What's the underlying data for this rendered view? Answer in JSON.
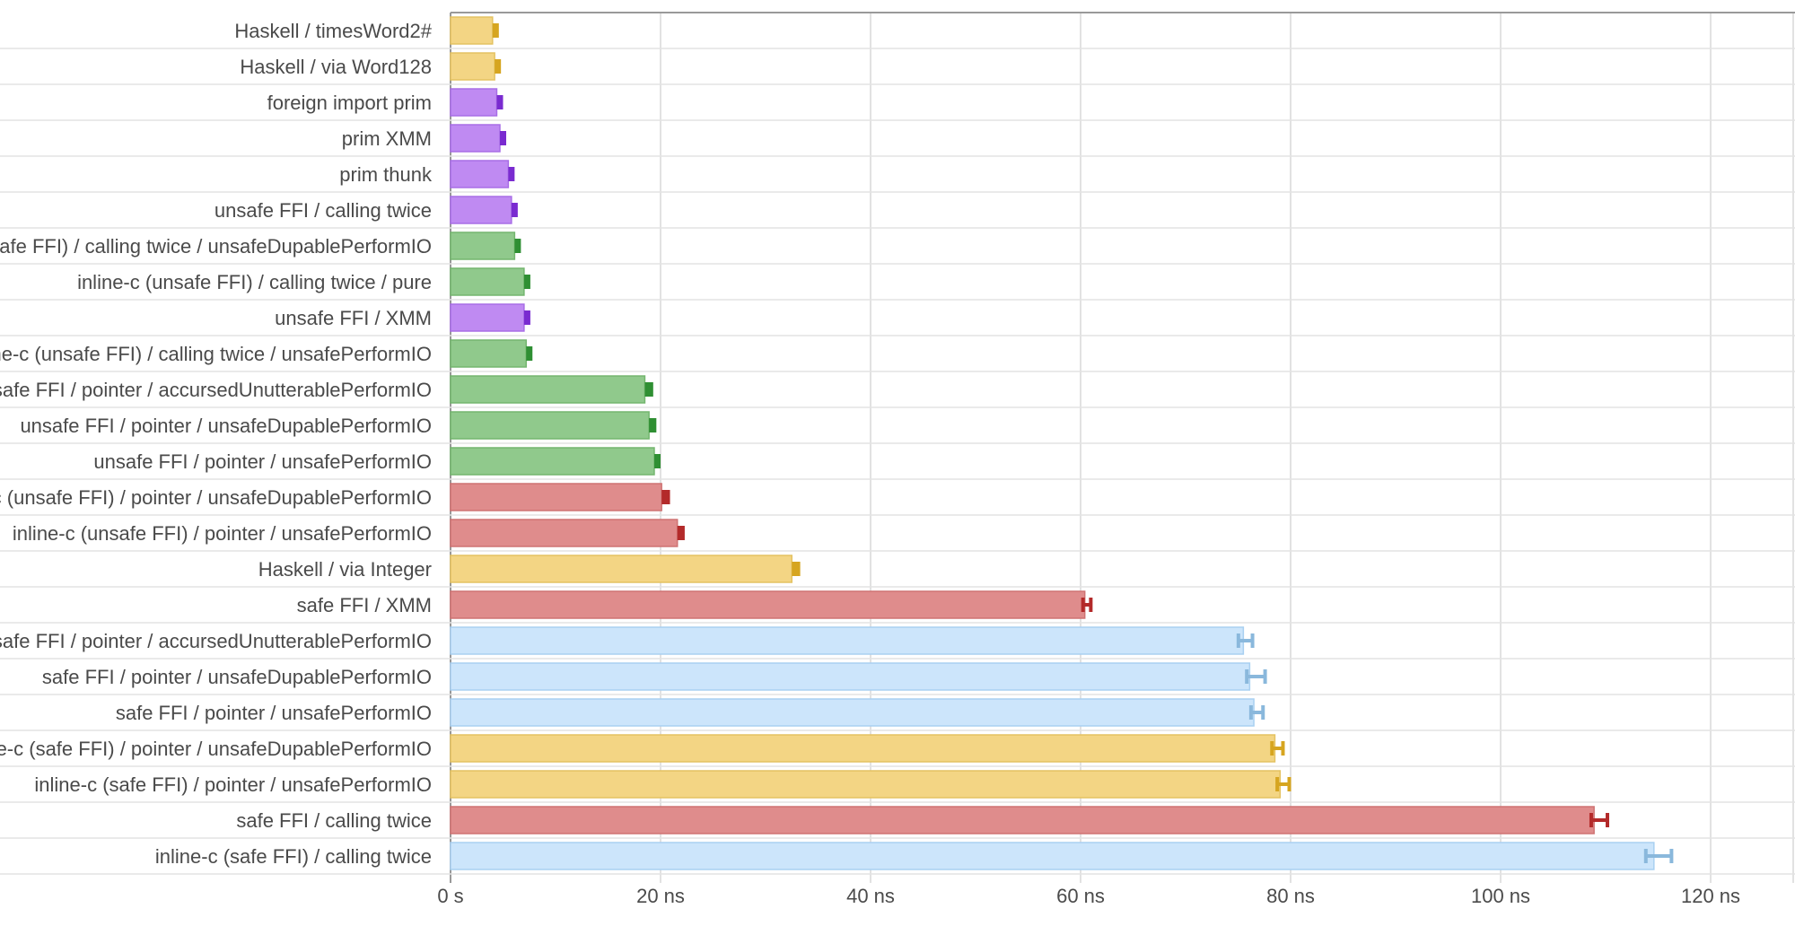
{
  "chart_data": {
    "type": "bar",
    "orientation": "horizontal",
    "title": "",
    "xlabel": "",
    "ylabel": "",
    "xlim": [
      0,
      128
    ],
    "xticks": [
      {
        "value": 0,
        "label": "0 s"
      },
      {
        "value": 20,
        "label": "20 ns"
      },
      {
        "value": 40,
        "label": "40 ns"
      },
      {
        "value": 60,
        "label": "60 ns"
      },
      {
        "value": 80,
        "label": "80 ns"
      },
      {
        "value": 100,
        "label": "100 ns"
      },
      {
        "value": 120,
        "label": "120 ns"
      }
    ],
    "grid": true,
    "legend": "none",
    "colors": {
      "yellow": {
        "fill": "#f3d584",
        "stroke": "#e4c262",
        "err": "#d6a520"
      },
      "purple": {
        "fill": "#bf8af2",
        "stroke": "#a86ee6",
        "err": "#7a2bd0"
      },
      "green": {
        "fill": "#90c98c",
        "stroke": "#74b66f",
        "err": "#2f8f33"
      },
      "red": {
        "fill": "#df8c8c",
        "stroke": "#cf7373",
        "err": "#b32a2a"
      },
      "blue": {
        "fill": "#cce5fb",
        "stroke": "#a9d0f1",
        "err": "#8ab8dc"
      }
    },
    "bars": [
      {
        "label": "Haskell / timesWord2#",
        "value": 4.0,
        "err_low": 4.0,
        "err_high": 4.6,
        "color": "yellow"
      },
      {
        "label": "Haskell / via Word128",
        "value": 4.2,
        "err_low": 4.2,
        "err_high": 4.8,
        "color": "yellow"
      },
      {
        "label": "foreign import prim",
        "value": 4.4,
        "err_low": 4.4,
        "err_high": 5.0,
        "color": "purple"
      },
      {
        "label": "prim XMM",
        "value": 4.7,
        "err_low": 4.7,
        "err_high": 5.3,
        "color": "purple"
      },
      {
        "label": "prim thunk",
        "value": 5.5,
        "err_low": 5.5,
        "err_high": 6.1,
        "color": "purple"
      },
      {
        "label": "unsafe FFI / calling twice",
        "value": 5.8,
        "err_low": 5.8,
        "err_high": 6.4,
        "color": "purple"
      },
      {
        "label": "inline-c (unsafe FFI) / calling twice / unsafeDupablePerformIO",
        "value": 6.1,
        "err_low": 6.1,
        "err_high": 6.7,
        "color": "green"
      },
      {
        "label": "inline-c (unsafe FFI) / calling twice / pure",
        "value": 7.0,
        "err_low": 7.0,
        "err_high": 7.6,
        "color": "green"
      },
      {
        "label": "unsafe FFI / XMM",
        "value": 7.0,
        "err_low": 7.0,
        "err_high": 7.6,
        "color": "purple"
      },
      {
        "label": "inline-c (unsafe FFI) / calling twice / unsafePerformIO",
        "value": 7.2,
        "err_low": 7.2,
        "err_high": 7.8,
        "color": "green"
      },
      {
        "label": "unsafe FFI / pointer / accursedUnutterablePerformIO",
        "value": 18.5,
        "err_low": 18.5,
        "err_high": 19.3,
        "color": "green"
      },
      {
        "label": "unsafe FFI / pointer / unsafeDupablePerformIO",
        "value": 18.9,
        "err_low": 18.9,
        "err_high": 19.6,
        "color": "green"
      },
      {
        "label": "unsafe FFI / pointer / unsafePerformIO",
        "value": 19.4,
        "err_low": 19.4,
        "err_high": 20.0,
        "color": "green"
      },
      {
        "label": "inline-c (unsafe FFI) / pointer / unsafeDupablePerformIO",
        "value": 20.1,
        "err_low": 20.1,
        "err_high": 20.9,
        "color": "red"
      },
      {
        "label": "inline-c (unsafe FFI) / pointer / unsafePerformIO",
        "value": 21.6,
        "err_low": 21.6,
        "err_high": 22.3,
        "color": "red"
      },
      {
        "label": "Haskell / via Integer",
        "value": 32.5,
        "err_low": 32.5,
        "err_high": 33.3,
        "color": "yellow"
      },
      {
        "label": "safe FFI / XMM",
        "value": 60.4,
        "err_low": 60.1,
        "err_high": 61.1,
        "color": "red"
      },
      {
        "label": "safe FFI / pointer / accursedUnutterablePerformIO",
        "value": 75.5,
        "err_low": 74.9,
        "err_high": 76.5,
        "color": "blue"
      },
      {
        "label": "safe FFI / pointer / unsafeDupablePerformIO",
        "value": 76.1,
        "err_low": 75.7,
        "err_high": 77.7,
        "color": "blue"
      },
      {
        "label": "safe FFI / pointer / unsafePerformIO",
        "value": 76.5,
        "err_low": 76.1,
        "err_high": 77.5,
        "color": "blue"
      },
      {
        "label": "inline-c (safe FFI) / pointer / unsafeDupablePerformIO",
        "value": 78.5,
        "err_low": 78.1,
        "err_high": 79.4,
        "color": "yellow"
      },
      {
        "label": "inline-c (safe FFI) / pointer / unsafePerformIO",
        "value": 79.0,
        "err_low": 78.6,
        "err_high": 80.0,
        "color": "yellow"
      },
      {
        "label": "safe FFI / calling twice",
        "value": 108.9,
        "err_low": 108.5,
        "err_high": 110.3,
        "color": "red"
      },
      {
        "label": "inline-c (safe FFI) / calling twice",
        "value": 114.6,
        "err_low": 113.7,
        "err_high": 116.4,
        "color": "blue"
      }
    ]
  }
}
